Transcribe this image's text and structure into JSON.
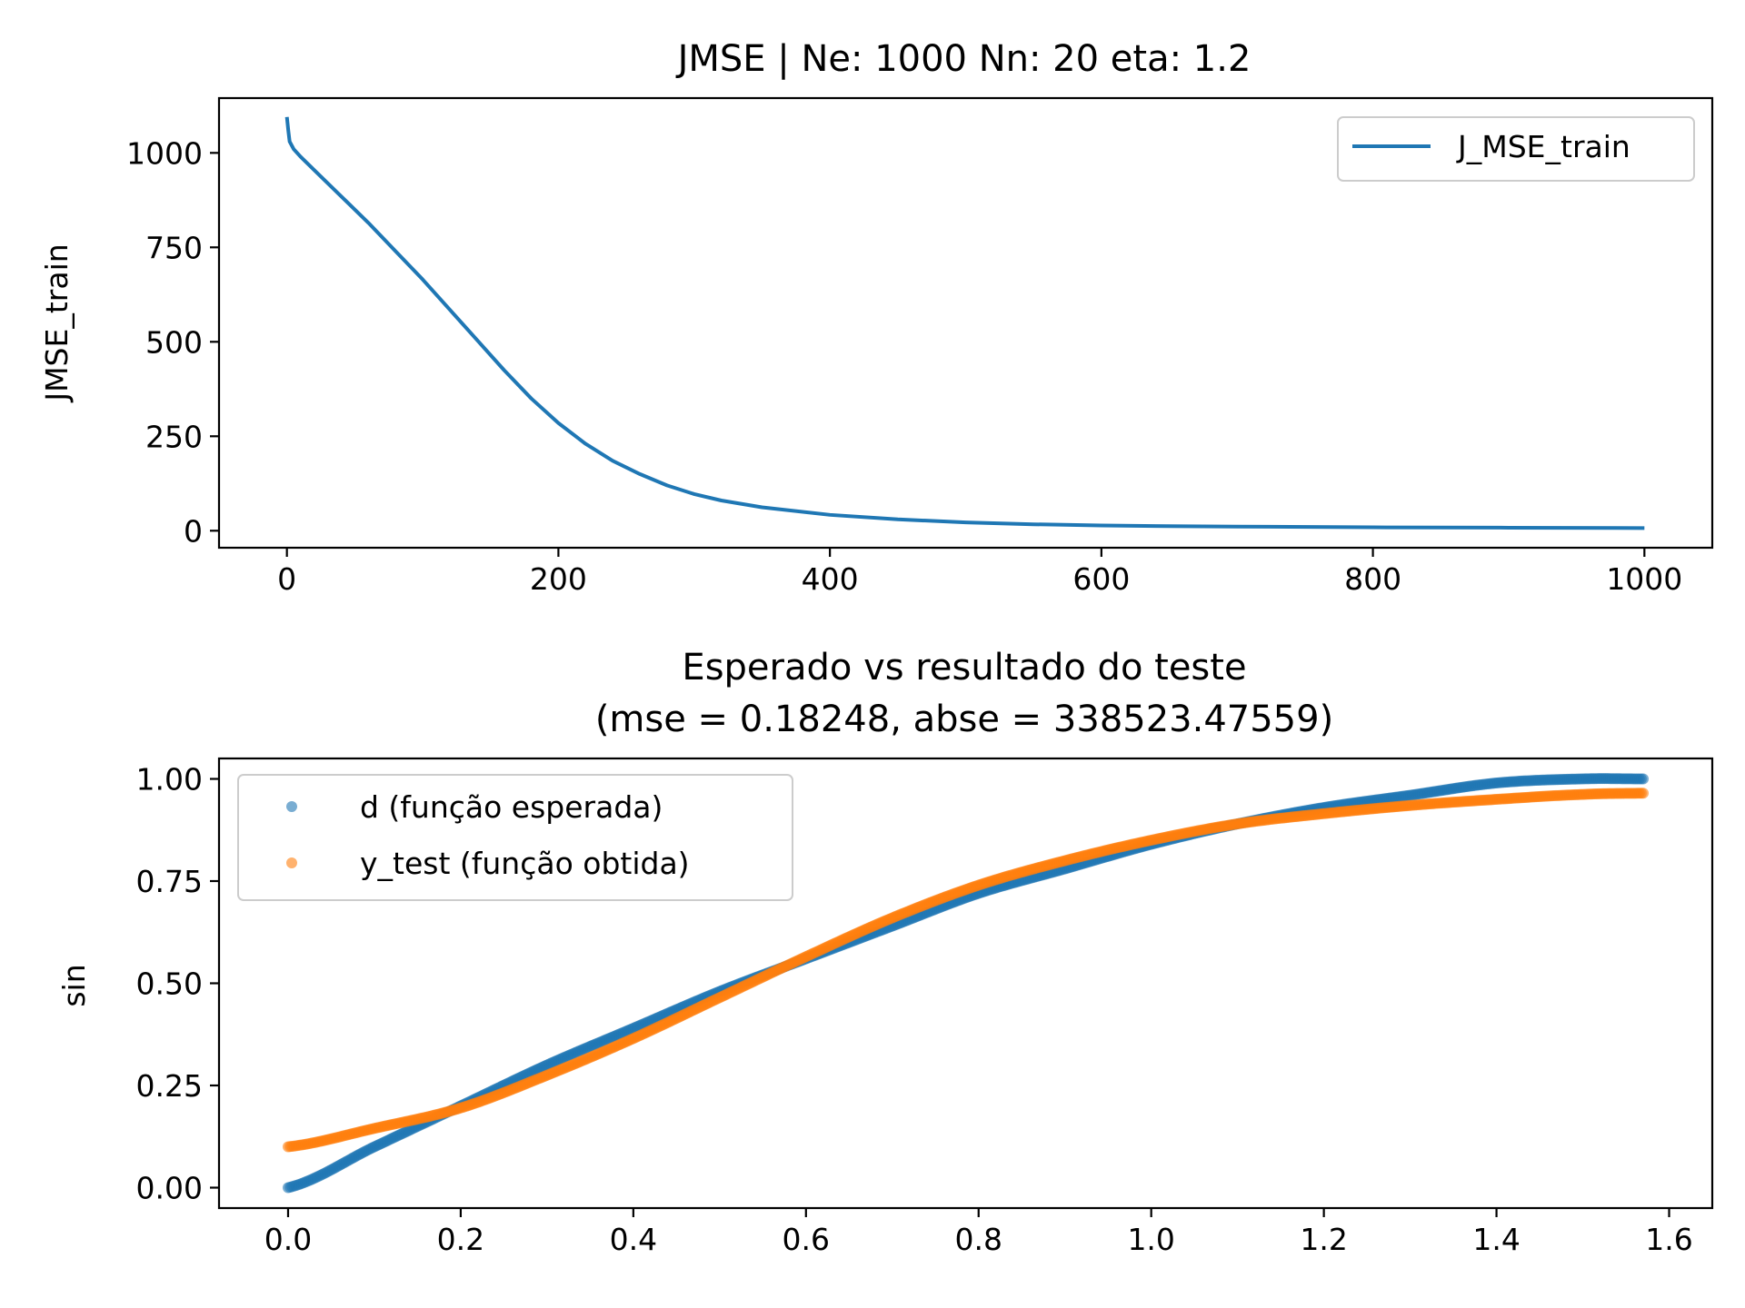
{
  "chart_data": [
    {
      "type": "line",
      "title": "JMSE | Ne: 1000 Nn: 20 eta: 1.2",
      "xlabel": "",
      "ylabel": "JMSE_train",
      "xlim": [
        -50,
        1050
      ],
      "ylim": [
        -45,
        1145
      ],
      "xticks": [
        0,
        200,
        400,
        600,
        800,
        1000
      ],
      "xtick_labels": [
        "0",
        "200",
        "400",
        "600",
        "800",
        "1000"
      ],
      "yticks": [
        0,
        250,
        500,
        750,
        1000
      ],
      "ytick_labels": [
        "0",
        "250",
        "500",
        "750",
        "1000"
      ],
      "grid": false,
      "legend_position": "top-right",
      "series": [
        {
          "name": "J_MSE_train",
          "color": "#1f77b4",
          "x": [
            0,
            1,
            2,
            5,
            10,
            20,
            40,
            60,
            80,
            100,
            120,
            140,
            160,
            180,
            200,
            220,
            240,
            260,
            280,
            300,
            320,
            350,
            400,
            450,
            500,
            550,
            600,
            650,
            700,
            800,
            900,
            1000
          ],
          "y": [
            1095,
            1060,
            1030,
            1010,
            990,
            955,
            885,
            815,
            740,
            665,
            585,
            505,
            425,
            350,
            285,
            230,
            185,
            150,
            120,
            97,
            80,
            62,
            42,
            30,
            22,
            17,
            14,
            12,
            11,
            9,
            8,
            7
          ]
        }
      ]
    },
    {
      "type": "scatter",
      "title": "Esperado vs resultado do teste\n(mse = 0.18248, abse = 338523.47559)",
      "title_lines": [
        "Esperado vs resultado do teste",
        "(mse = 0.18248, abse = 338523.47559)"
      ],
      "xlabel": "",
      "ylabel": "sin",
      "xlim": [
        -0.08,
        1.65
      ],
      "ylim": [
        -0.05,
        1.05
      ],
      "xticks": [
        0.0,
        0.2,
        0.4,
        0.6,
        0.8,
        1.0,
        1.2,
        1.4,
        1.6
      ],
      "xtick_labels": [
        "0.0",
        "0.2",
        "0.4",
        "0.6",
        "0.8",
        "1.0",
        "1.2",
        "1.4",
        "1.6"
      ],
      "yticks": [
        0.0,
        0.25,
        0.5,
        0.75,
        1.0
      ],
      "ytick_labels": [
        "0.00",
        "0.25",
        "0.50",
        "0.75",
        "1.00"
      ],
      "grid": false,
      "legend_position": "top-left",
      "series": [
        {
          "name": "d (função esperada)",
          "color": "#1f77b4",
          "x": [
            0.0,
            0.1,
            0.2,
            0.3,
            0.4,
            0.5,
            0.6,
            0.7,
            0.8,
            0.9,
            1.0,
            1.1,
            1.2,
            1.3,
            1.4,
            1.5,
            1.57
          ],
          "y": [
            0.0,
            0.1,
            0.2,
            0.3,
            0.39,
            0.48,
            0.56,
            0.64,
            0.72,
            0.78,
            0.84,
            0.89,
            0.93,
            0.96,
            0.99,
            1.0,
            1.0
          ]
        },
        {
          "name": "y_test (função obtida)",
          "color": "#ff7f0e",
          "x": [
            0.0,
            0.1,
            0.2,
            0.3,
            0.4,
            0.5,
            0.6,
            0.7,
            0.8,
            0.9,
            1.0,
            1.1,
            1.2,
            1.3,
            1.4,
            1.5,
            1.57
          ],
          "y": [
            0.1,
            0.145,
            0.195,
            0.275,
            0.365,
            0.465,
            0.565,
            0.66,
            0.74,
            0.8,
            0.85,
            0.89,
            0.915,
            0.935,
            0.95,
            0.962,
            0.965
          ]
        }
      ]
    }
  ]
}
